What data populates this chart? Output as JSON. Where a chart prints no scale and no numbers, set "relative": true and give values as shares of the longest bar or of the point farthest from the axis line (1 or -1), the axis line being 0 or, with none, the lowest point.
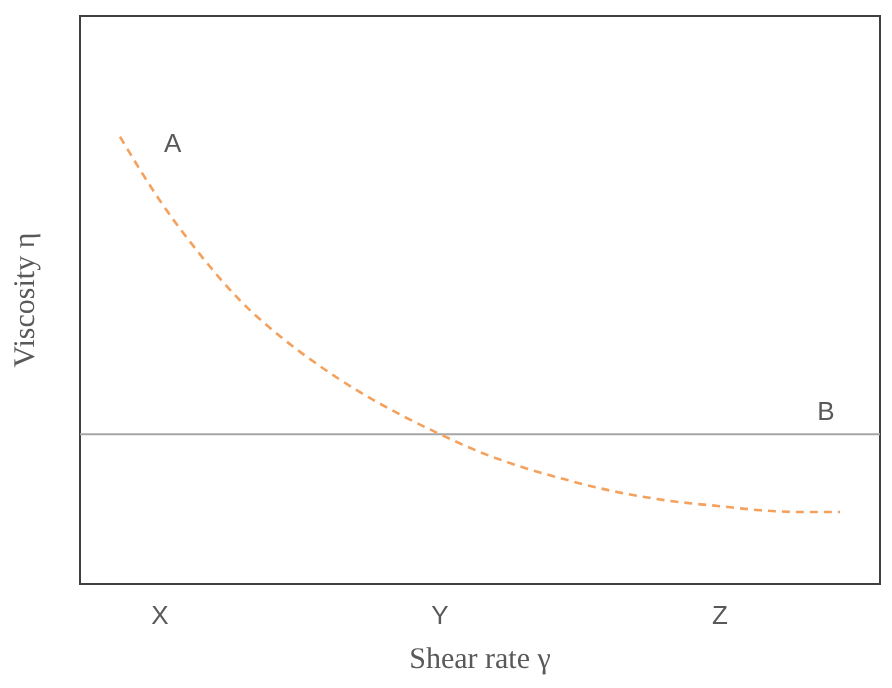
{
  "chart_data": {
    "type": "line",
    "relative": true,
    "xlabel": "Shear rate γ",
    "ylabel": "Viscosity η",
    "categories": [
      null,
      "X",
      null,
      null,
      null,
      null,
      null,
      null,
      "Y",
      null,
      null,
      null,
      null,
      null,
      null,
      "Z",
      null,
      null,
      null
    ],
    "series": [
      {
        "color": "#f4a15d",
        "line_style": "dashed",
        "values": [
          1,
          0.857,
          0.737,
          0.634,
          0.554,
          0.487,
          0.429,
          0.379,
          0.335,
          0.295,
          0.263,
          0.237,
          0.214,
          0.196,
          0.183,
          0.174,
          0.165,
          0.161,
          0.161
        ]
      }
    ],
    "ref_lines": [
      {
        "axis": "y",
        "value": 0.335,
        "label": "B",
        "color": "#a6a6a6"
      }
    ],
    "annotations": [
      "A"
    ]
  }
}
